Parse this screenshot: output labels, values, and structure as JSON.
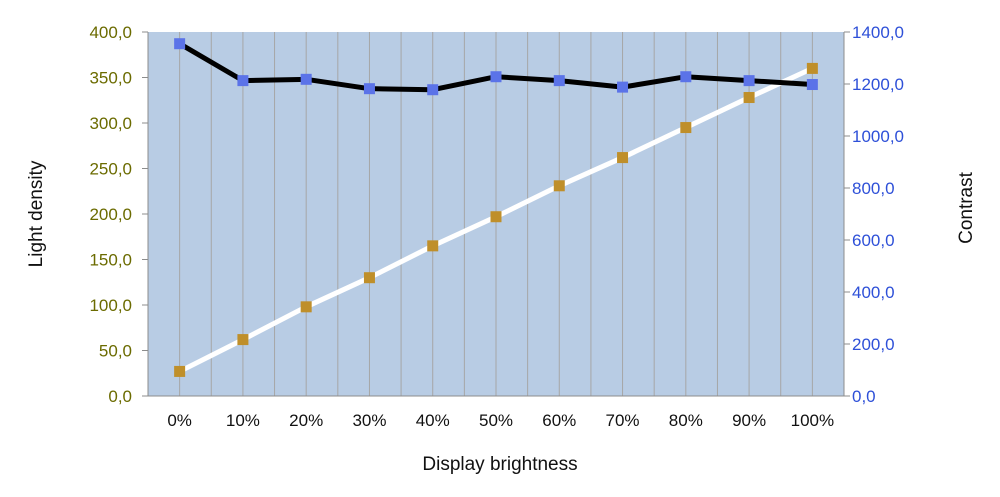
{
  "colors": {
    "plot_bg": "#b8cce4",
    "grid": "#a6a6a6",
    "left_axis_text": "#6b6b00",
    "right_axis_text": "#2e50d8",
    "contrast_line": "#000000",
    "contrast_marker": "#5b73e8",
    "density_line": "#ffffff",
    "density_marker": "#bf8f2a"
  },
  "chart_data": {
    "type": "line",
    "xlabel": "Display brightness",
    "ylabel": "Light density",
    "y2label": "Contrast",
    "categories": [
      "0%",
      "10%",
      "20%",
      "30%",
      "40%",
      "50%",
      "60%",
      "70%",
      "80%",
      "90%",
      "100%"
    ],
    "ylim": [
      0,
      400
    ],
    "y2lim": [
      0,
      1400
    ],
    "yticks": [
      "0,0",
      "50,0",
      "100,0",
      "150,0",
      "200,0",
      "250,0",
      "300,0",
      "350,0",
      "400,0"
    ],
    "y2ticks": [
      "0,0",
      "200,0",
      "400,0",
      "600,0",
      "800,0",
      "1000,0",
      "1200,0",
      "1400,0"
    ],
    "grid": true,
    "series": [
      {
        "axis": "left",
        "values": [
          27,
          62,
          98,
          130,
          165,
          197,
          231,
          262,
          295,
          328,
          360
        ]
      },
      {
        "axis": "right",
        "values": [
          1355,
          1213,
          1218,
          1182,
          1178,
          1228,
          1213,
          1188,
          1228,
          1213,
          1198
        ]
      }
    ]
  }
}
